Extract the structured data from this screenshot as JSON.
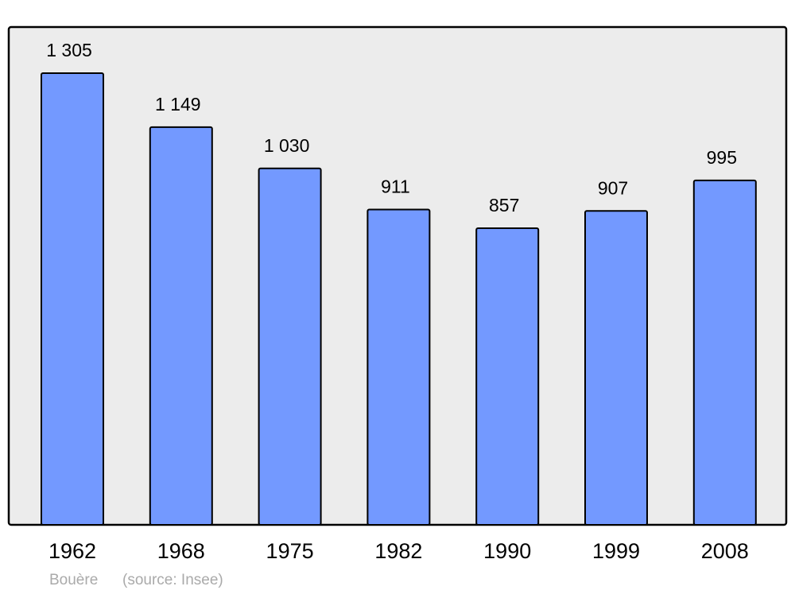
{
  "chart_data": {
    "type": "bar",
    "categories": [
      "1962",
      "1968",
      "1975",
      "1982",
      "1990",
      "1999",
      "2008"
    ],
    "values": [
      1305,
      1149,
      1030,
      911,
      857,
      907,
      995
    ],
    "value_labels": [
      "1 305",
      "1 149",
      "1 030",
      "911",
      "857",
      "907",
      "995"
    ],
    "color": "#7399ff",
    "caption": "Bouère",
    "source": "(source: Insee)"
  }
}
